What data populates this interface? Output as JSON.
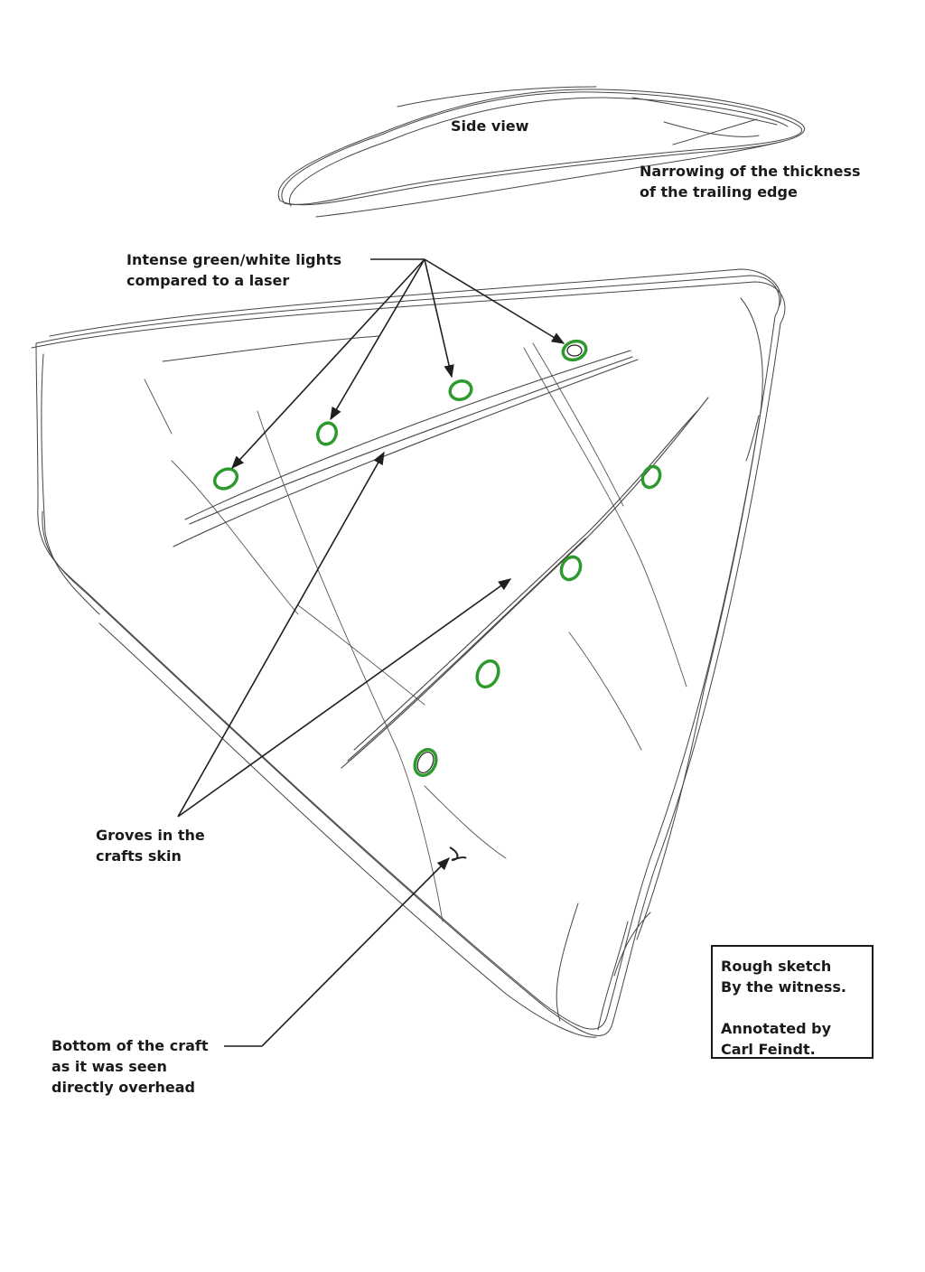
{
  "labels": {
    "side_view": "Side view",
    "trailing_edge": [
      "Narrowing of the thickness",
      "of the trailing edge"
    ],
    "lights": [
      "Intense green/white lights",
      "compared to a laser"
    ],
    "grooves": [
      "Groves in the",
      "crafts skin"
    ],
    "bottom": [
      "Bottom of the craft",
      "as it was seen",
      "directly overhead"
    ]
  },
  "credit": {
    "line1": "Rough sketch",
    "line2": "By the witness.",
    "line3": "Annotated by",
    "line4": "Carl Feindt."
  },
  "colors": {
    "pencil": "#4a4444",
    "ink": "#1f1f1f",
    "light_green": "#2e9a2e"
  },
  "light_count": 8
}
